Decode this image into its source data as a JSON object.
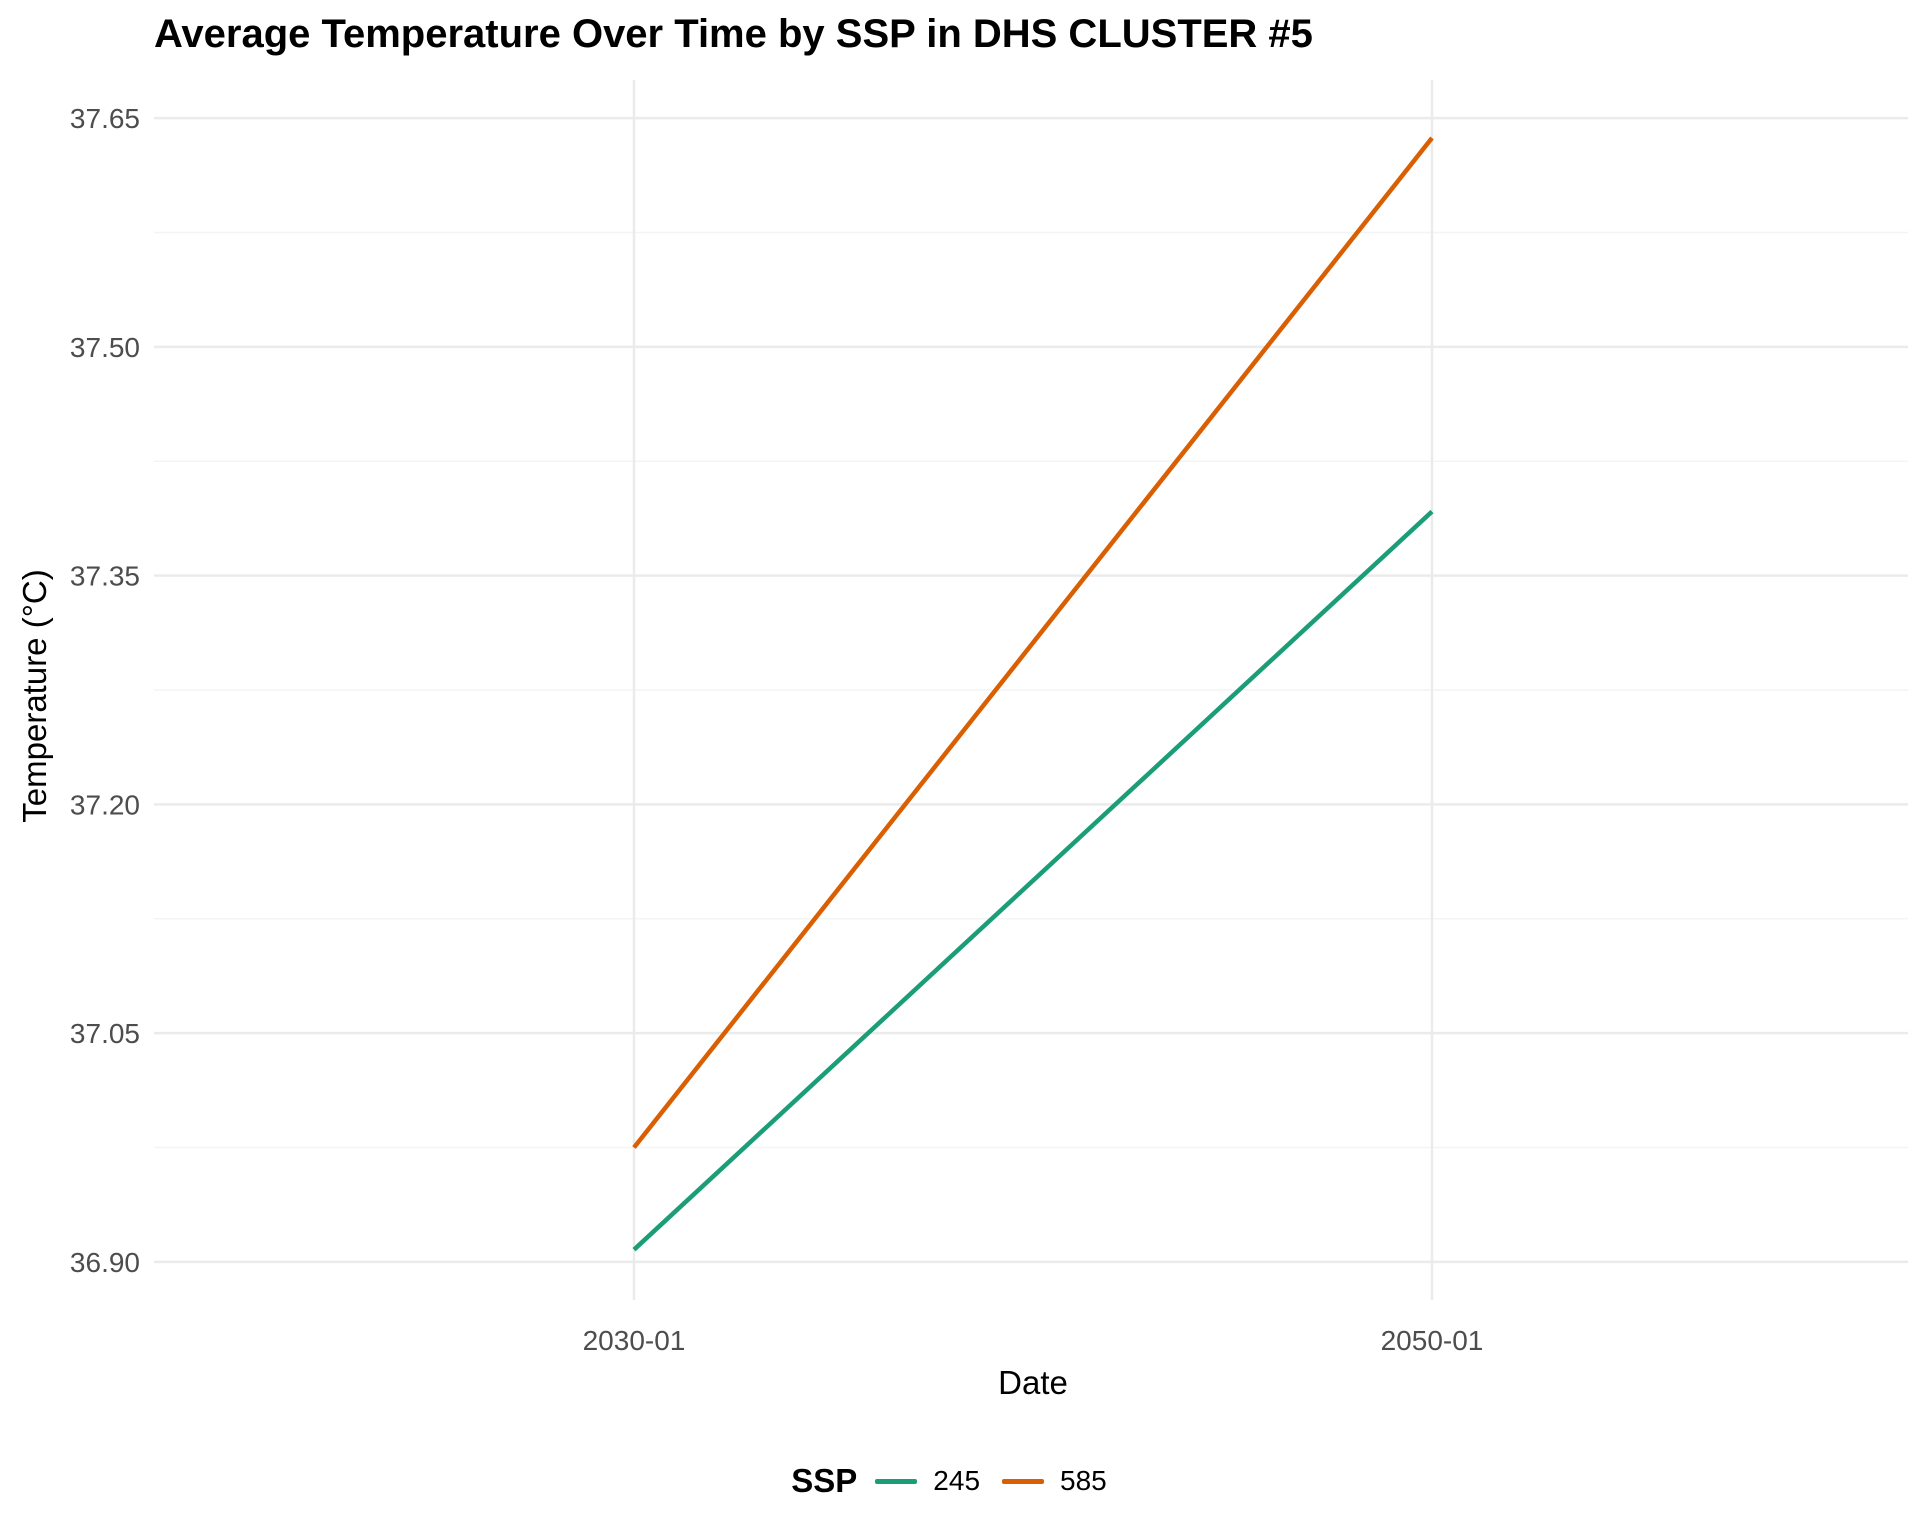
{
  "chart_data": {
    "type": "line",
    "title": "Average Temperature Over Time by SSP in DHS CLUSTER #5",
    "xlabel": "Date",
    "ylabel": "Temperature (°C)",
    "x": [
      "2030-01",
      "2050-01"
    ],
    "x_ticks": [
      "2030-01",
      "2050-01"
    ],
    "y_ticks": [
      "36.90",
      "37.05",
      "37.20",
      "37.35",
      "37.50",
      "37.65"
    ],
    "ylim": [
      36.875,
      37.675
    ],
    "grid": true,
    "legend": {
      "title": "SSP",
      "position": "bottom"
    },
    "series": [
      {
        "name": "245",
        "color": "#1b9e77",
        "values": [
          36.908,
          37.392
        ]
      },
      {
        "name": "585",
        "color": "#d95f02",
        "values": [
          36.975,
          37.637
        ]
      }
    ]
  }
}
